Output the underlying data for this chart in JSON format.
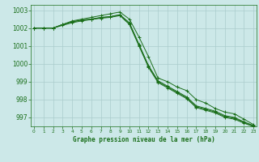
{
  "title": "Graphe pression niveau de la mer (hPa)",
  "bg_color": "#cce8e8",
  "grid_color": "#aacccc",
  "line_color": "#1a6e1a",
  "xlim": [
    -0.3,
    23.3
  ],
  "ylim": [
    996.5,
    1003.3
  ],
  "yticks": [
    997,
    998,
    999,
    1000,
    1001,
    1002,
    1003
  ],
  "xticks": [
    0,
    1,
    2,
    3,
    4,
    5,
    6,
    7,
    8,
    9,
    10,
    11,
    12,
    13,
    14,
    15,
    16,
    17,
    18,
    19,
    20,
    21,
    22,
    23
  ],
  "lines": [
    [
      1002.0,
      1002.0,
      1002.0,
      1002.2,
      1002.4,
      1002.5,
      1002.6,
      1002.7,
      1002.8,
      1002.9,
      1002.5,
      1001.5,
      1000.4,
      999.2,
      999.0,
      998.7,
      998.5,
      998.0,
      997.8,
      997.5,
      997.3,
      997.2,
      996.9,
      996.6
    ],
    [
      1002.0,
      1002.0,
      1002.0,
      1002.2,
      1002.35,
      1002.45,
      1002.5,
      1002.6,
      1002.65,
      1002.75,
      1002.3,
      1001.1,
      999.9,
      999.05,
      998.75,
      998.45,
      998.15,
      997.65,
      997.5,
      997.35,
      997.1,
      997.0,
      996.75,
      996.55
    ],
    [
      1002.0,
      1002.0,
      1002.0,
      1002.2,
      1002.35,
      1002.45,
      1002.5,
      1002.58,
      1002.63,
      1002.73,
      1002.25,
      1001.05,
      999.85,
      999.0,
      998.7,
      998.4,
      998.1,
      997.6,
      997.45,
      997.3,
      997.05,
      996.95,
      996.72,
      996.52
    ],
    [
      1002.0,
      1002.0,
      1002.0,
      1002.15,
      1002.3,
      1002.4,
      1002.48,
      1002.55,
      1002.6,
      1002.7,
      1002.2,
      1001.0,
      999.8,
      998.95,
      998.65,
      998.35,
      998.05,
      997.55,
      997.4,
      997.25,
      997.0,
      996.9,
      996.68,
      996.48
    ]
  ],
  "figsize": [
    3.2,
    2.0
  ],
  "dpi": 100
}
